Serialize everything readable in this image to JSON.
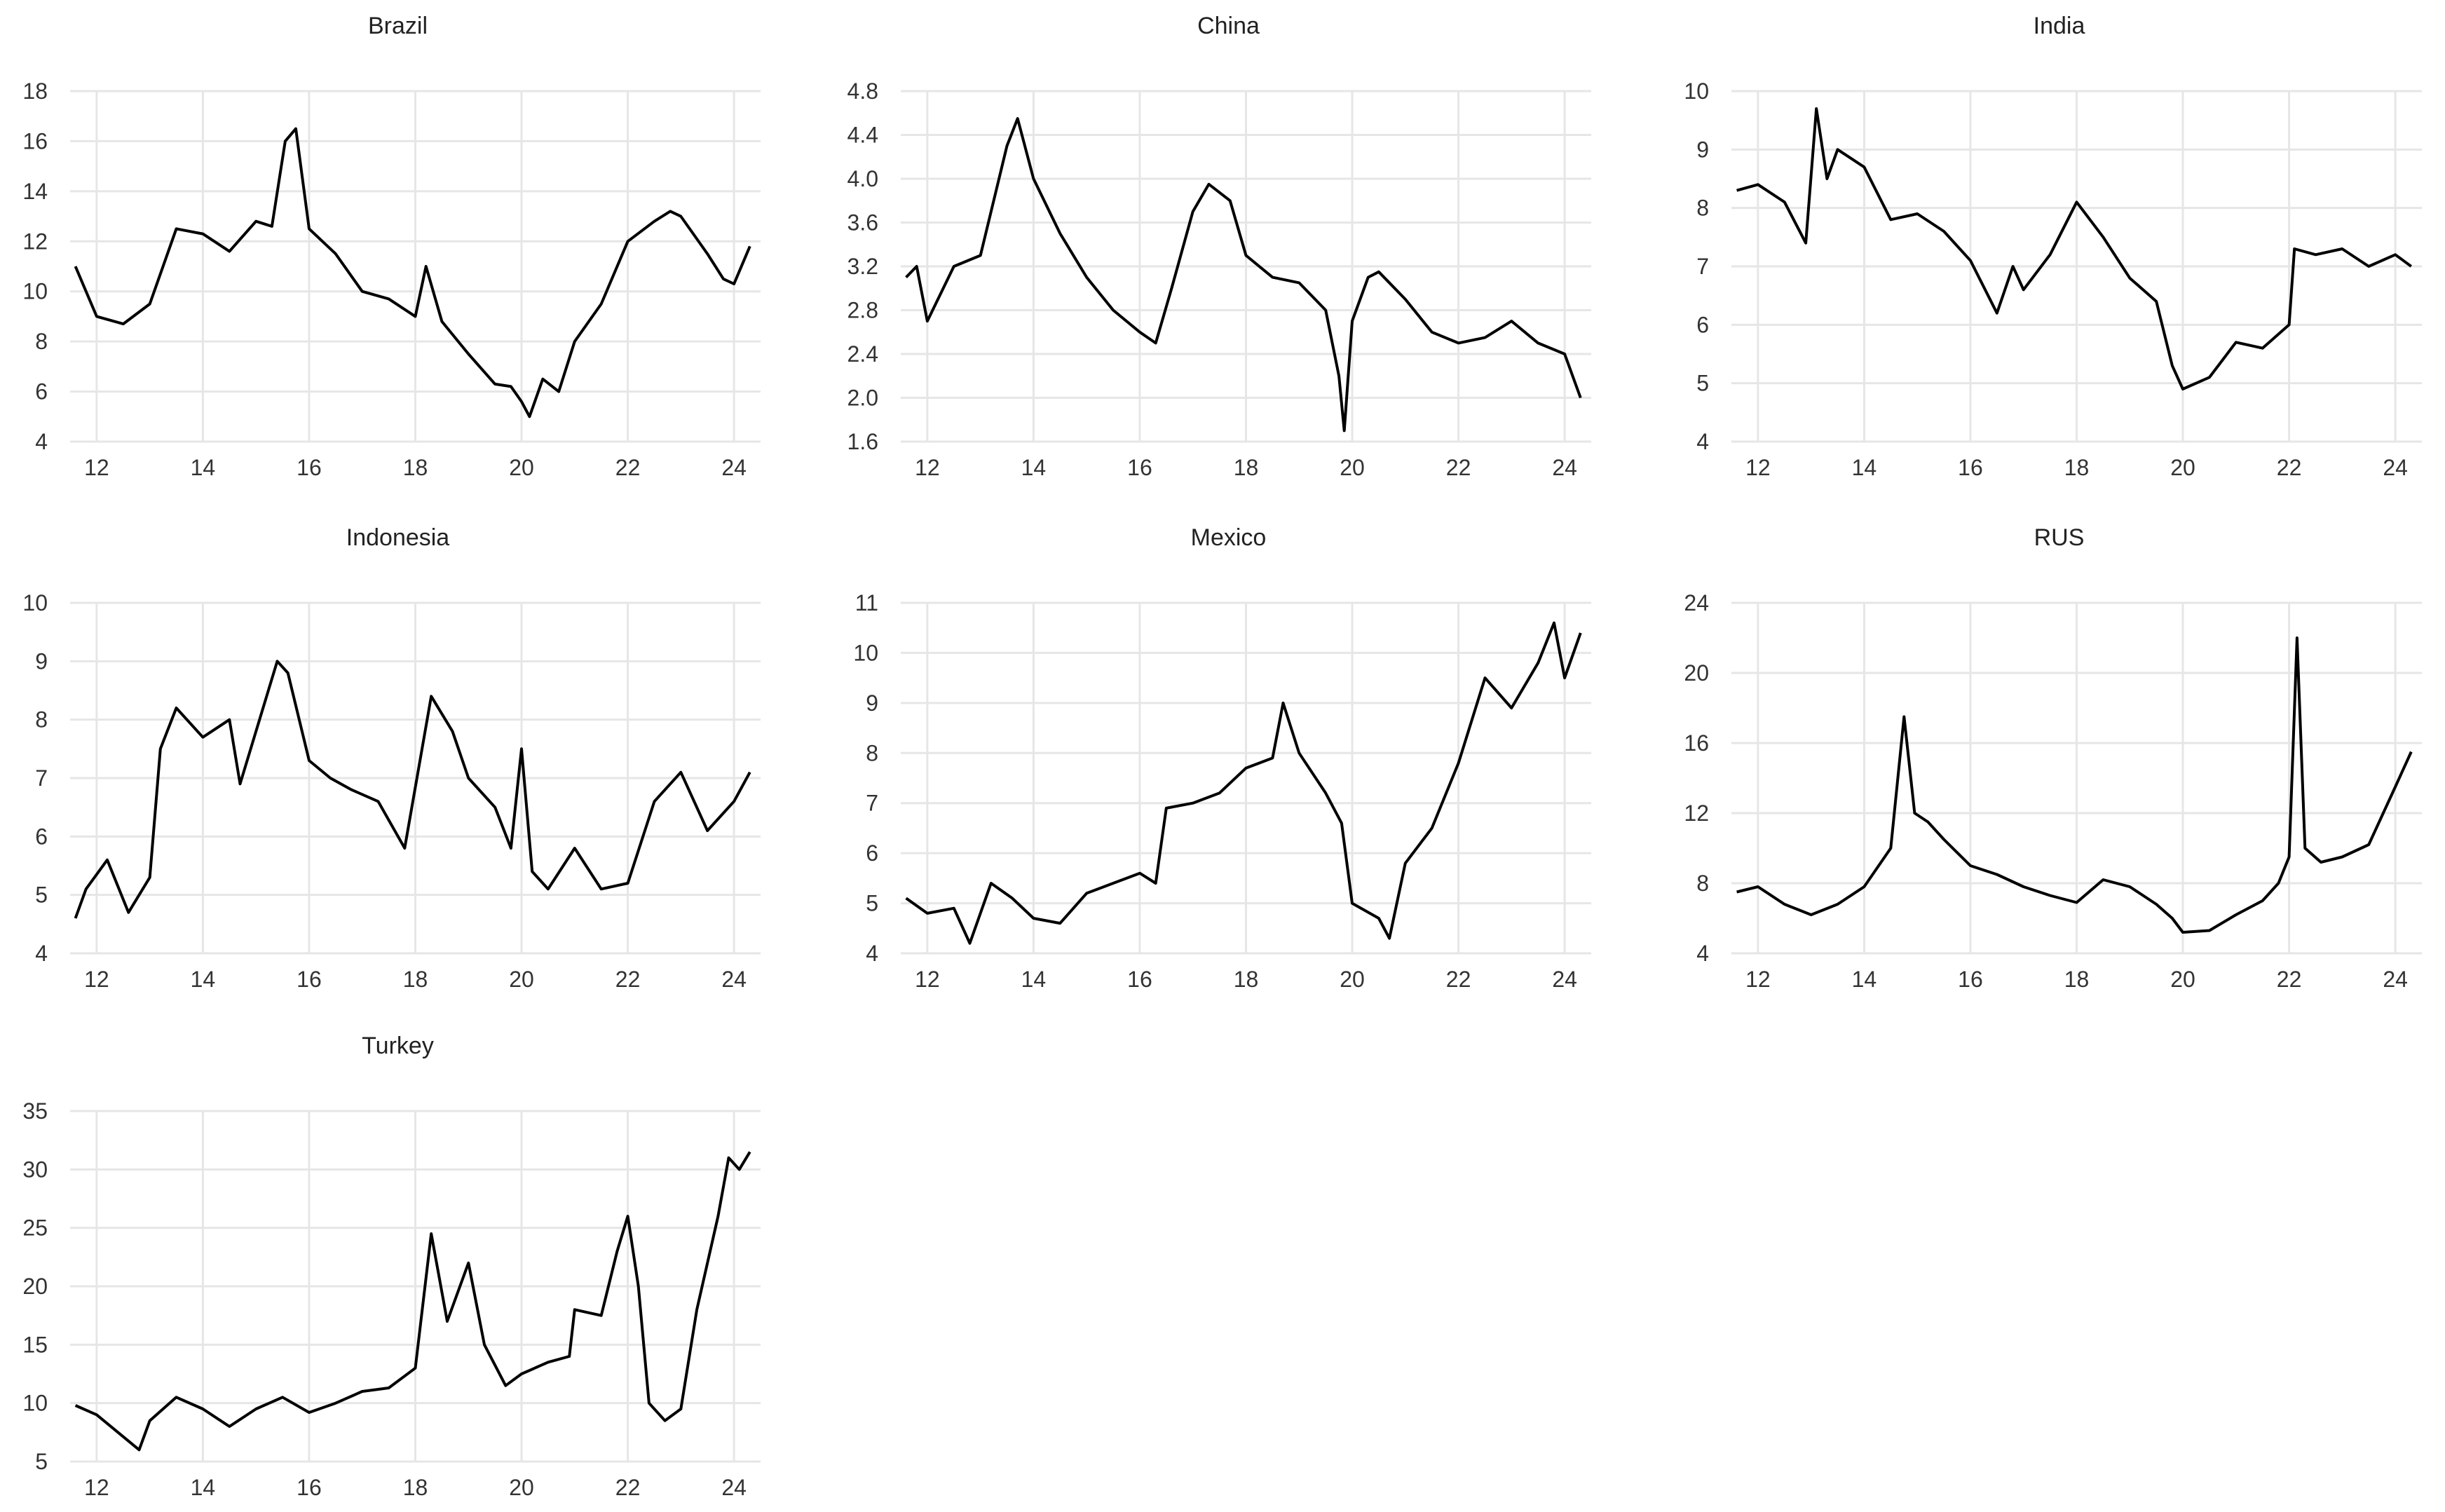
{
  "chart_data": [
    {
      "type": "line",
      "title": "Brazil",
      "xlim": [
        2011.5,
        2024.5
      ],
      "xticks": [
        12,
        14,
        16,
        18,
        20,
        22,
        24
      ],
      "xtick_labels": [
        "12",
        "14",
        "16",
        "18",
        "20",
        "22",
        "24"
      ],
      "ylim": [
        4,
        18
      ],
      "yticks": [
        4,
        6,
        8,
        10,
        12,
        14,
        16,
        18
      ],
      "ytick_labels": [
        "4",
        "6",
        "8",
        "10",
        "12",
        "14",
        "16",
        "18"
      ],
      "grid": true,
      "x": [
        2011.6,
        2012.0,
        2012.5,
        2013.0,
        2013.5,
        2014.0,
        2014.5,
        2015.0,
        2015.3,
        2015.55,
        2015.75,
        2016.0,
        2016.5,
        2017.0,
        2017.5,
        2018.0,
        2018.2,
        2018.5,
        2019.0,
        2019.5,
        2019.8,
        2020.0,
        2020.15,
        2020.4,
        2020.7,
        2021.0,
        2021.5,
        2022.0,
        2022.5,
        2022.8,
        2023.0,
        2023.5,
        2023.8,
        2024.0,
        2024.3
      ],
      "y": [
        11.0,
        9.0,
        8.7,
        9.5,
        12.5,
        12.3,
        11.6,
        12.8,
        12.6,
        16.0,
        16.5,
        12.5,
        11.5,
        10.0,
        9.7,
        9.0,
        11.0,
        8.8,
        7.5,
        6.3,
        6.2,
        5.6,
        5.0,
        6.5,
        6.0,
        8.0,
        9.5,
        12.0,
        12.8,
        13.2,
        13.0,
        11.5,
        10.5,
        10.3,
        11.8
      ]
    },
    {
      "type": "line",
      "title": "China",
      "xlim": [
        2011.5,
        2024.5
      ],
      "xticks": [
        12,
        14,
        16,
        18,
        20,
        22,
        24
      ],
      "xtick_labels": [
        "12",
        "14",
        "16",
        "18",
        "20",
        "22",
        "24"
      ],
      "ylim": [
        1.6,
        4.8
      ],
      "yticks": [
        1.6,
        2.0,
        2.4,
        2.8,
        3.2,
        3.6,
        4.0,
        4.4,
        4.8
      ],
      "ytick_labels": [
        "1.6",
        "2.0",
        "2.4",
        "2.8",
        "3.2",
        "3.6",
        "4.0",
        "4.4",
        "4.8"
      ],
      "grid": true,
      "x": [
        2011.6,
        2011.8,
        2012.0,
        2012.5,
        2013.0,
        2013.5,
        2013.7,
        2014.0,
        2014.5,
        2015.0,
        2015.5,
        2016.0,
        2016.3,
        2016.6,
        2017.0,
        2017.3,
        2017.7,
        2018.0,
        2018.5,
        2019.0,
        2019.5,
        2019.75,
        2019.85,
        2020.0,
        2020.3,
        2020.5,
        2021.0,
        2021.5,
        2022.0,
        2022.5,
        2023.0,
        2023.5,
        2024.0,
        2024.3
      ],
      "y": [
        3.1,
        3.2,
        2.7,
        3.2,
        3.3,
        4.3,
        4.55,
        4.0,
        3.5,
        3.1,
        2.8,
        2.6,
        2.5,
        3.0,
        3.7,
        3.95,
        3.8,
        3.3,
        3.1,
        3.05,
        2.8,
        2.2,
        1.7,
        2.7,
        3.1,
        3.15,
        2.9,
        2.6,
        2.5,
        2.55,
        2.7,
        2.5,
        2.4,
        2.0
      ]
    },
    {
      "type": "line",
      "title": "India",
      "xlim": [
        2011.5,
        2024.5
      ],
      "xticks": [
        12,
        14,
        16,
        18,
        20,
        22,
        24
      ],
      "xtick_labels": [
        "12",
        "14",
        "16",
        "18",
        "20",
        "22",
        "24"
      ],
      "ylim": [
        4,
        10
      ],
      "yticks": [
        4,
        5,
        6,
        7,
        8,
        9,
        10
      ],
      "ytick_labels": [
        "4",
        "5",
        "6",
        "7",
        "8",
        "9",
        "10"
      ],
      "grid": true,
      "x": [
        2011.6,
        2012.0,
        2012.5,
        2012.9,
        2013.1,
        2013.3,
        2013.5,
        2014.0,
        2014.5,
        2015.0,
        2015.5,
        2016.0,
        2016.5,
        2016.8,
        2017.0,
        2017.5,
        2018.0,
        2018.5,
        2019.0,
        2019.5,
        2019.8,
        2020.0,
        2020.5,
        2021.0,
        2021.5,
        2022.0,
        2022.1,
        2022.5,
        2023.0,
        2023.5,
        2024.0,
        2024.3
      ],
      "y": [
        8.3,
        8.4,
        8.1,
        7.4,
        9.7,
        8.5,
        9.0,
        8.7,
        7.8,
        7.9,
        7.6,
        7.1,
        6.2,
        7.0,
        6.6,
        7.2,
        8.1,
        7.5,
        6.8,
        6.4,
        5.3,
        4.9,
        5.1,
        5.7,
        5.6,
        6.0,
        7.3,
        7.2,
        7.3,
        7.0,
        7.2,
        7.0
      ]
    },
    {
      "type": "line",
      "title": "Indonesia",
      "xlim": [
        2011.5,
        2024.5
      ],
      "xticks": [
        12,
        14,
        16,
        18,
        20,
        22,
        24
      ],
      "xtick_labels": [
        "12",
        "14",
        "16",
        "18",
        "20",
        "22",
        "24"
      ],
      "ylim": [
        4,
        10
      ],
      "yticks": [
        4,
        5,
        6,
        7,
        8,
        9,
        10
      ],
      "ytick_labels": [
        "4",
        "5",
        "6",
        "7",
        "8",
        "9",
        "10"
      ],
      "grid": true,
      "x": [
        2011.6,
        2011.8,
        2012.2,
        2012.6,
        2013.0,
        2013.2,
        2013.5,
        2014.0,
        2014.5,
        2014.7,
        2015.0,
        2015.4,
        2015.6,
        2016.0,
        2016.4,
        2016.8,
        2017.3,
        2017.8,
        2018.3,
        2018.7,
        2019.0,
        2019.5,
        2019.8,
        2020.0,
        2020.2,
        2020.5,
        2021.0,
        2021.5,
        2022.0,
        2022.5,
        2023.0,
        2023.5,
        2024.0,
        2024.3
      ],
      "y": [
        4.6,
        5.1,
        5.6,
        4.7,
        5.3,
        7.5,
        8.2,
        7.7,
        8.0,
        6.9,
        7.8,
        9.0,
        8.8,
        7.3,
        7.0,
        6.8,
        6.6,
        5.8,
        8.4,
        7.8,
        7.0,
        6.5,
        5.8,
        7.5,
        5.4,
        5.1,
        5.8,
        5.1,
        5.2,
        6.6,
        7.1,
        6.1,
        6.6,
        7.1
      ]
    },
    {
      "type": "line",
      "title": "Mexico",
      "xlim": [
        2011.5,
        2024.5
      ],
      "xticks": [
        12,
        14,
        16,
        18,
        20,
        22,
        24
      ],
      "xtick_labels": [
        "12",
        "14",
        "16",
        "18",
        "20",
        "22",
        "24"
      ],
      "ylim": [
        4,
        11
      ],
      "yticks": [
        4,
        5,
        6,
        7,
        8,
        9,
        10,
        11
      ],
      "ytick_labels": [
        "4",
        "5",
        "6",
        "7",
        "8",
        "9",
        "10",
        "11"
      ],
      "grid": true,
      "x": [
        2011.6,
        2012.0,
        2012.5,
        2012.8,
        2013.2,
        2013.6,
        2014.0,
        2014.5,
        2015.0,
        2015.5,
        2016.0,
        2016.3,
        2016.5,
        2017.0,
        2017.5,
        2018.0,
        2018.5,
        2018.7,
        2019.0,
        2019.5,
        2019.8,
        2020.0,
        2020.5,
        2020.7,
        2021.0,
        2021.5,
        2022.0,
        2022.5,
        2023.0,
        2023.5,
        2023.8,
        2024.0,
        2024.3
      ],
      "y": [
        5.1,
        4.8,
        4.9,
        4.2,
        5.4,
        5.1,
        4.7,
        4.6,
        5.2,
        5.4,
        5.6,
        5.4,
        6.9,
        7.0,
        7.2,
        7.7,
        7.9,
        9.0,
        8.0,
        7.2,
        6.6,
        5.0,
        4.7,
        4.3,
        5.8,
        6.5,
        7.8,
        9.5,
        8.9,
        9.8,
        10.6,
        9.5,
        10.4
      ]
    },
    {
      "type": "line",
      "title": "RUS",
      "xlim": [
        2011.5,
        2024.5
      ],
      "xticks": [
        12,
        14,
        16,
        18,
        20,
        22,
        24
      ],
      "xtick_labels": [
        "12",
        "14",
        "16",
        "18",
        "20",
        "22",
        "24"
      ],
      "ylim": [
        4,
        24
      ],
      "yticks": [
        4,
        8,
        12,
        16,
        20,
        24
      ],
      "ytick_labels": [
        "4",
        "8",
        "12",
        "16",
        "20",
        "24"
      ],
      "grid": true,
      "x": [
        2011.6,
        2012.0,
        2012.5,
        2013.0,
        2013.5,
        2014.0,
        2014.5,
        2014.75,
        2014.95,
        2015.2,
        2015.5,
        2016.0,
        2016.5,
        2017.0,
        2017.5,
        2018.0,
        2018.5,
        2019.0,
        2019.5,
        2019.8,
        2020.0,
        2020.5,
        2021.0,
        2021.5,
        2021.8,
        2022.0,
        2022.15,
        2022.3,
        2022.6,
        2023.0,
        2023.5,
        2024.0,
        2024.3
      ],
      "y": [
        7.5,
        7.8,
        6.8,
        6.2,
        6.8,
        7.8,
        10.0,
        17.5,
        12.0,
        11.5,
        10.5,
        9.0,
        8.5,
        7.8,
        7.3,
        6.9,
        8.2,
        7.8,
        6.8,
        6.0,
        5.2,
        5.3,
        6.2,
        7.0,
        8.0,
        9.5,
        22.0,
        10.0,
        9.2,
        9.5,
        10.2,
        13.5,
        15.5
      ]
    },
    {
      "type": "line",
      "title": "Turkey",
      "xlim": [
        2011.5,
        2024.5
      ],
      "xticks": [
        12,
        14,
        16,
        18,
        20,
        22,
        24
      ],
      "xtick_labels": [
        "12",
        "14",
        "16",
        "18",
        "20",
        "22",
        "24"
      ],
      "ylim": [
        5,
        35
      ],
      "yticks": [
        5,
        10,
        15,
        20,
        25,
        30,
        35
      ],
      "ytick_labels": [
        "5",
        "10",
        "15",
        "20",
        "25",
        "30",
        "35"
      ],
      "grid": true,
      "x": [
        2011.6,
        2012.0,
        2012.4,
        2012.8,
        2013.0,
        2013.5,
        2014.0,
        2014.5,
        2015.0,
        2015.5,
        2016.0,
        2016.5,
        2017.0,
        2017.5,
        2018.0,
        2018.3,
        2018.6,
        2019.0,
        2019.3,
        2019.7,
        2020.0,
        2020.5,
        2020.9,
        2021.0,
        2021.5,
        2021.8,
        2022.0,
        2022.2,
        2022.4,
        2022.7,
        2023.0,
        2023.3,
        2023.7,
        2023.9,
        2024.1,
        2024.3
      ],
      "y": [
        9.8,
        9.0,
        7.5,
        6.0,
        8.5,
        10.5,
        9.5,
        8.0,
        9.5,
        10.5,
        9.2,
        10.0,
        11.0,
        11.3,
        13.0,
        24.5,
        17.0,
        22.0,
        15.0,
        11.5,
        12.5,
        13.5,
        14.0,
        18.0,
        17.5,
        23.0,
        26.0,
        20.0,
        10.0,
        8.5,
        9.5,
        18.0,
        26.0,
        31.0,
        30.0,
        31.5
      ]
    }
  ]
}
